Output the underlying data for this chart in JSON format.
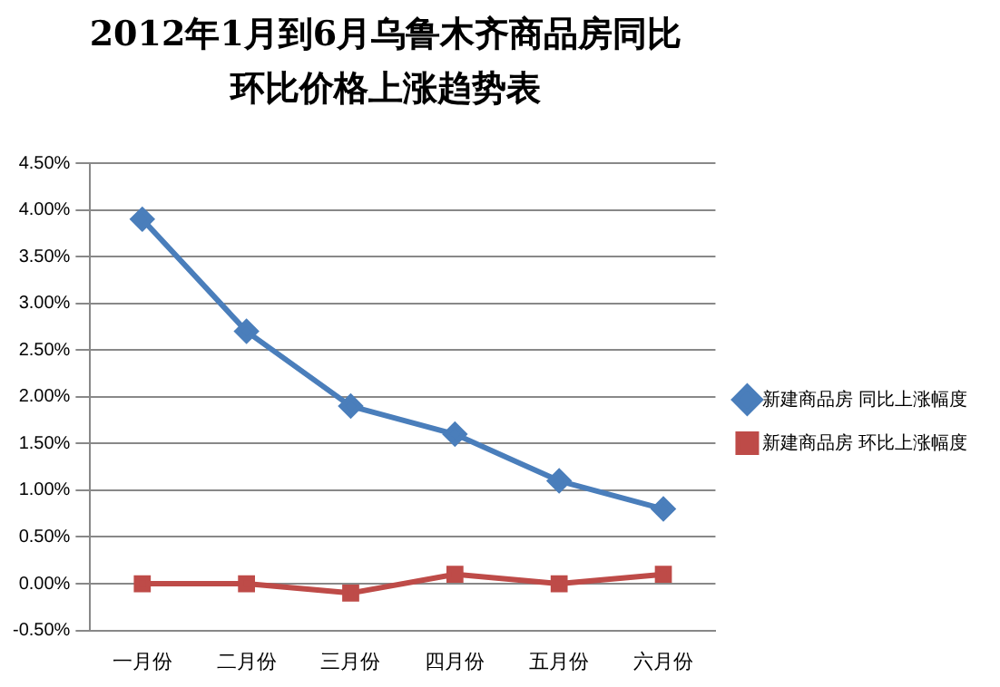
{
  "chart_data": {
    "type": "line",
    "title": "2012年1月到6月乌鲁木齐商品房同比环比价格上涨趋势表",
    "categories": [
      "一月份",
      "二月份",
      "三月份",
      "四月份",
      "五月份",
      "六月份"
    ],
    "series": [
      {
        "name": "新建商品房 同比上涨幅度",
        "color": "#4a7ebb",
        "marker": "diamond",
        "values": [
          3.9,
          2.7,
          1.9,
          1.6,
          1.1,
          0.8
        ]
      },
      {
        "name": "新建商品房 环比上涨幅度",
        "color": "#be4b48",
        "marker": "square",
        "values": [
          0,
          0,
          -0.1,
          0.1,
          0,
          0.1
        ]
      }
    ],
    "ylim": [
      -0.5,
      4.5
    ],
    "yticks": [
      {
        "value": -0.5,
        "label": "-0.50%"
      },
      {
        "value": 0,
        "label": "0.00%"
      },
      {
        "value": 0.5,
        "label": "0.50%"
      },
      {
        "value": 1,
        "label": "1.00%"
      },
      {
        "value": 1.5,
        "label": "1.50%"
      },
      {
        "value": 2,
        "label": "2.00%"
      },
      {
        "value": 2.5,
        "label": "2.50%"
      },
      {
        "value": 3,
        "label": "3.00%"
      },
      {
        "value": 3.5,
        "label": "3.50%"
      },
      {
        "value": 4,
        "label": "4.00%"
      },
      {
        "value": 4.5,
        "label": "4.50%"
      }
    ],
    "grid": "y",
    "legend": "right",
    "line_style": "solid"
  }
}
